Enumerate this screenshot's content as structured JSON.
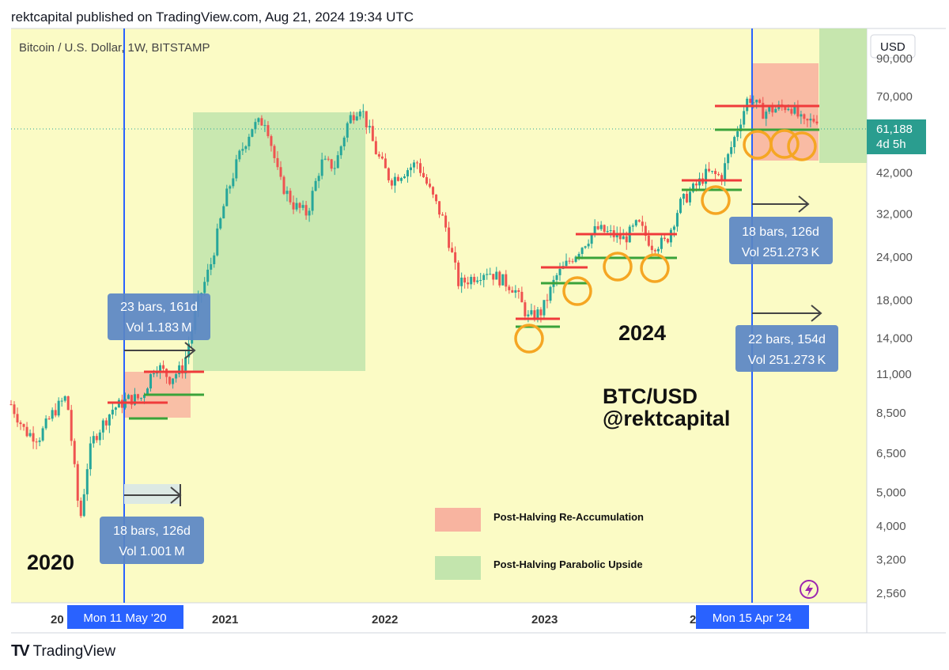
{
  "header": {
    "published": "rektcapital published on TradingView.com, Aug 21, 2024 19:34 UTC"
  },
  "symbol": {
    "label": "Bitcoin / U.S. Dollar, 1W, BITSTAMP"
  },
  "price_scale": {
    "currency": "USD",
    "ticks": [
      "90,000",
      "70,000",
      "42,000",
      "32,000",
      "24,000",
      "18,000",
      "14,000",
      "11,000",
      "8,500",
      "6,500",
      "5,000",
      "4,000",
      "3,200",
      "2,560"
    ],
    "last_price": "61,188",
    "countdown": "4d 5h"
  },
  "time_axis": {
    "labels": [
      "20",
      "2021",
      "2022",
      "2023",
      "2"
    ],
    "cursor_left": "Mon 11 May '20",
    "cursor_right": "Mon 15 Apr '24"
  },
  "annotations": {
    "box_a": {
      "line1": "23 bars, 161d",
      "line2": "Vol 1.183 M"
    },
    "box_b": {
      "line1": "18 bars, 126d",
      "line2": "Vol 1.001 M"
    },
    "box_c": {
      "line1": "18 bars, 126d",
      "line2": "Vol 251.273 K"
    },
    "box_d": {
      "line1": "22 bars, 154d",
      "line2": "Vol 251.273 K"
    },
    "year_2020": "2020",
    "year_2024": "2024",
    "watermark_1": "BTC/USD",
    "watermark_2": "@rektcapital"
  },
  "legend": {
    "red": {
      "label": "Post-Halving Re-Accumulation",
      "color": "#f8b4a0"
    },
    "green": {
      "label": "Post-Halving Parabolic Upside",
      "color": "#c3e5ad"
    }
  },
  "footer": {
    "brand": "TradingView"
  },
  "colors": {
    "up": "#26a69a",
    "down": "#ef5350",
    "background": "#fbfbc5",
    "halving_line": "#2962ff",
    "circle": "#f5a623",
    "badge": "#2a9d8f"
  },
  "chart_data": {
    "type": "candlestick",
    "title": "Bitcoin / U.S. Dollar, 1W, BITSTAMP",
    "y_scale": "log",
    "ylim": [
      2400,
      110000
    ],
    "x_range": [
      "2019-10",
      "2024-12"
    ],
    "series": [
      {
        "name": "BTC/USD",
        "points": [
          [
            "2019-10-01",
            9000
          ],
          [
            "2019-11-01",
            7500
          ],
          [
            "2019-12-01",
            7200
          ],
          [
            "2020-01-01",
            8500
          ],
          [
            "2020-02-01",
            9500
          ],
          [
            "2020-03-01",
            4100
          ],
          [
            "2020-03-20",
            6400
          ],
          [
            "2020-04-01",
            7200
          ],
          [
            "2020-05-11",
            8700
          ],
          [
            "2020-06-15",
            9300
          ],
          [
            "2020-07-15",
            9400
          ],
          [
            "2020-08-15",
            11800
          ],
          [
            "2020-09-15",
            10700
          ],
          [
            "2020-10-15",
            11500
          ],
          [
            "2020-11-15",
            17500
          ],
          [
            "2020-12-15",
            23000
          ],
          [
            "2021-01-15",
            35000
          ],
          [
            "2021-02-15",
            47000
          ],
          [
            "2021-03-15",
            57000
          ],
          [
            "2021-04-15",
            60000
          ],
          [
            "2021-05-15",
            40000
          ],
          [
            "2021-06-15",
            34000
          ],
          [
            "2021-07-15",
            32000
          ],
          [
            "2021-08-15",
            45000
          ],
          [
            "2021-09-15",
            44000
          ],
          [
            "2021-10-15",
            60000
          ],
          [
            "2021-11-10",
            66000
          ],
          [
            "2021-12-15",
            48000
          ],
          [
            "2022-01-15",
            40000
          ],
          [
            "2022-03-15",
            45000
          ],
          [
            "2022-05-15",
            30000
          ],
          [
            "2022-06-15",
            20000
          ],
          [
            "2022-08-15",
            22000
          ],
          [
            "2022-10-15",
            19500
          ],
          [
            "2022-11-15",
            16000
          ],
          [
            "2022-12-15",
            16700
          ],
          [
            "2023-01-15",
            21000
          ],
          [
            "2023-03-15",
            26000
          ],
          [
            "2023-04-15",
            29000
          ],
          [
            "2023-06-15",
            27000
          ],
          [
            "2023-07-15",
            30000
          ],
          [
            "2023-08-15",
            26000
          ],
          [
            "2023-09-15",
            26500
          ],
          [
            "2023-10-15",
            34000
          ],
          [
            "2023-12-15",
            42000
          ],
          [
            "2024-01-15",
            41000
          ],
          [
            "2024-03-15",
            70000
          ],
          [
            "2024-04-15",
            63000
          ],
          [
            "2024-06-15",
            66000
          ],
          [
            "2024-07-15",
            58000
          ],
          [
            "2024-08-19",
            61188
          ]
        ]
      }
    ]
  }
}
